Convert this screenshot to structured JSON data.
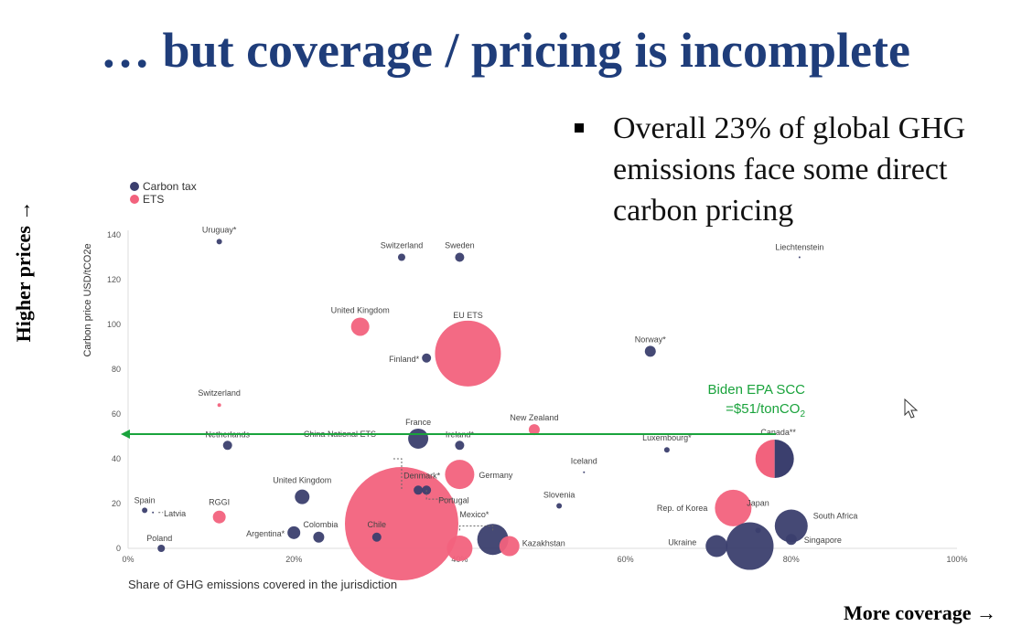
{
  "slide": {
    "title": "… but coverage / pricing is incomplete",
    "bullet": "Overall 23% of global GHG emissions face some direct carbon pricing",
    "y_side_label": "Higher prices →",
    "x_side_label": "More coverage →"
  },
  "chart_data": {
    "type": "scatter",
    "xlabel": "Share of GHG emissions covered in the jurisdiction",
    "ylabel": "Carbon price USD/tCO2e",
    "xlim": [
      0,
      100
    ],
    "ylim": [
      0,
      140
    ],
    "x_ticks": [
      "0%",
      "20%",
      "40%",
      "60%",
      "80%",
      "100%"
    ],
    "y_ticks": [
      "0",
      "20",
      "40",
      "60",
      "80",
      "100",
      "120",
      "140"
    ],
    "legend": [
      {
        "name": "Carbon tax",
        "color": "#3b3f6e"
      },
      {
        "name": "ETS",
        "color": "#f2627d"
      }
    ],
    "annotation": {
      "line1": "Biden EPA SCC",
      "line2_prefix": "=$51/tonCO",
      "line2_sub": "2",
      "y": 51,
      "color": "#1aa33c"
    },
    "points": [
      {
        "label": "Uruguay*",
        "x": 11,
        "y": 137,
        "r": 3,
        "type": "tax"
      },
      {
        "label": "Switzerland",
        "x": 33,
        "y": 130,
        "r": 4,
        "type": "tax"
      },
      {
        "label": "Sweden",
        "x": 40,
        "y": 130,
        "r": 5,
        "type": "tax"
      },
      {
        "label": "Liechtenstein",
        "x": 81,
        "y": 130,
        "r": 1,
        "type": "tax"
      },
      {
        "label": "United Kingdom",
        "x": 28,
        "y": 99,
        "r": 10,
        "type": "ets"
      },
      {
        "label": "EU ETS",
        "x": 41,
        "y": 87,
        "r": 36,
        "type": "ets"
      },
      {
        "label": "Finland*",
        "x": 36,
        "y": 85,
        "r": 5,
        "type": "tax"
      },
      {
        "label": "Norway*",
        "x": 63,
        "y": 88,
        "r": 6,
        "type": "tax"
      },
      {
        "label": "Switzerland",
        "x": 11,
        "y": 64,
        "r": 2,
        "type": "ets"
      },
      {
        "label": "New Zealand",
        "x": 49,
        "y": 53,
        "r": 6,
        "type": "ets"
      },
      {
        "label": "France",
        "x": 35,
        "y": 49,
        "r": 11,
        "type": "tax"
      },
      {
        "label": "Ireland*",
        "x": 40,
        "y": 46,
        "r": 5,
        "type": "tax"
      },
      {
        "label": "Netherlands",
        "x": 12,
        "y": 46,
        "r": 5,
        "type": "tax"
      },
      {
        "label": "Luxembourg*",
        "x": 65,
        "y": 44,
        "r": 3,
        "type": "tax"
      },
      {
        "label": "Canada**",
        "x": 78,
        "y": 40,
        "r": 21,
        "type": "split"
      },
      {
        "label": "Iceland",
        "x": 55,
        "y": 34,
        "r": 1,
        "type": "tax"
      },
      {
        "label": "China National ETS",
        "x": 33,
        "y": 11,
        "r": 62,
        "type": "ets"
      },
      {
        "label": "Denmark*",
        "x": 35,
        "y": 26,
        "r": 5,
        "type": "tax"
      },
      {
        "label": "Portugal",
        "x": 36,
        "y": 26,
        "r": 5,
        "type": "tax"
      },
      {
        "label": "Germany",
        "x": 40,
        "y": 33,
        "r": 16,
        "type": "ets"
      },
      {
        "label": "United Kingdom",
        "x": 21,
        "y": 23,
        "r": 8,
        "type": "tax"
      },
      {
        "label": "Slovenia",
        "x": 52,
        "y": 19,
        "r": 3,
        "type": "tax"
      },
      {
        "label": "Rep. of Korea",
        "x": 73,
        "y": 18,
        "r": 20,
        "type": "ets"
      },
      {
        "label": "Japan",
        "x": 76,
        "y": 8,
        "r": 3,
        "type": "tax"
      },
      {
        "label": "Spain",
        "x": 2,
        "y": 17,
        "r": 3,
        "type": "tax"
      },
      {
        "label": "Latvia",
        "x": 3,
        "y": 16,
        "r": 1,
        "type": "tax"
      },
      {
        "label": "RGGI",
        "x": 11,
        "y": 14,
        "r": 7,
        "type": "ets"
      },
      {
        "label": "Argentina*",
        "x": 20,
        "y": 7,
        "r": 7,
        "type": "tax"
      },
      {
        "label": "Colombia",
        "x": 23,
        "y": 5,
        "r": 6,
        "type": "tax"
      },
      {
        "label": "Chile",
        "x": 30,
        "y": 5,
        "r": 5,
        "type": "tax"
      },
      {
        "label": "Mexico*",
        "x": 40,
        "y": 0,
        "r": 14,
        "type": "ets"
      },
      {
        "label": "Mexico* tax",
        "x": 44,
        "y": 4,
        "r": 17,
        "type": "tax"
      },
      {
        "label": "Kazakhstan",
        "x": 46,
        "y": 1,
        "r": 11,
        "type": "ets"
      },
      {
        "label": "South Africa",
        "x": 80,
        "y": 10,
        "r": 18,
        "type": "tax"
      },
      {
        "label": "Ukraine",
        "x": 71,
        "y": 1,
        "r": 12,
        "type": "tax"
      },
      {
        "label": "Ukraine large",
        "x": 75,
        "y": 1,
        "r": 26,
        "type": "tax"
      },
      {
        "label": "Singapore",
        "x": 80,
        "y": 4,
        "r": 6,
        "type": "tax"
      },
      {
        "label": "Poland",
        "x": 4,
        "y": 0,
        "r": 4,
        "type": "tax"
      }
    ]
  }
}
